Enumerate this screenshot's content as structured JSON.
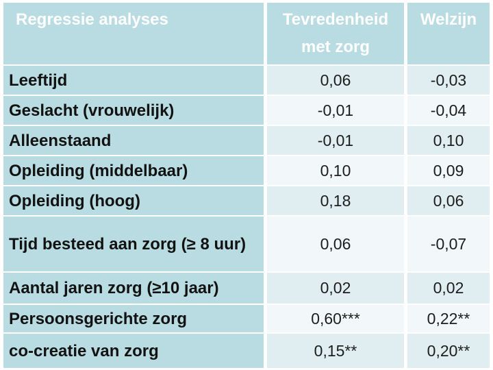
{
  "table": {
    "title_cell": "Regressie analyses",
    "columns": {
      "outcome1": "Tevredenheid met zorg",
      "outcome2": "Welzijn"
    },
    "rows": [
      {
        "label": "Leeftijd",
        "tevredenheid_met_zorg": "0,06",
        "welzijn": "-0,03"
      },
      {
        "label": "Geslacht (vrouwelijk)",
        "tevredenheid_met_zorg": "-0,01",
        "welzijn": "-0,04"
      },
      {
        "label": "Alleenstaand",
        "tevredenheid_met_zorg": "-0,01",
        "welzijn": "0,10"
      },
      {
        "label": "Opleiding (middelbaar)",
        "tevredenheid_met_zorg": "0,10",
        "welzijn": "0,09"
      },
      {
        "label": "Opleiding (hoog)",
        "tevredenheid_met_zorg": "0,18",
        "welzijn": "0,06"
      },
      {
        "label": "Tijd besteed aan zorg (≥ 8 uur)",
        "tevredenheid_met_zorg": "0,06",
        "welzijn": "-0,07"
      },
      {
        "label": "Aantal jaren zorg (≥10 jaar)",
        "tevredenheid_met_zorg": "0,02",
        "welzijn": "0,02"
      },
      {
        "label": "Persoonsgerichte zorg",
        "tevredenheid_met_zorg": "0,60***",
        "welzijn": "0,22**"
      },
      {
        "label": "co-creatie van zorg",
        "tevredenheid_met_zorg": "0,15**",
        "welzijn": "0,20**"
      }
    ],
    "colors": {
      "header_fill": "#b8dce1",
      "label_column_fill": "#b8dce1",
      "band_odd_fill": "#e0eef1",
      "band_even_fill": "#f2f8f9",
      "header_text": "#ffffff",
      "body_text": "#1d1d1d",
      "gap_lines": "#ffffff"
    }
  }
}
